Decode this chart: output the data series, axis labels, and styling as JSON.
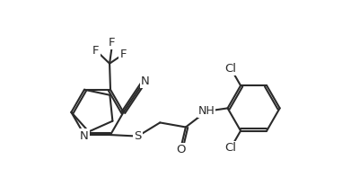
{
  "background_color": "#ffffff",
  "line_color": "#2a2a2a",
  "line_width": 1.5,
  "font_size": 9.5,
  "figsize": [
    3.81,
    2.17
  ],
  "dpi": 100,
  "xlim": [
    0.0,
    7.8
  ],
  "ylim": [
    1.2,
    5.8
  ]
}
